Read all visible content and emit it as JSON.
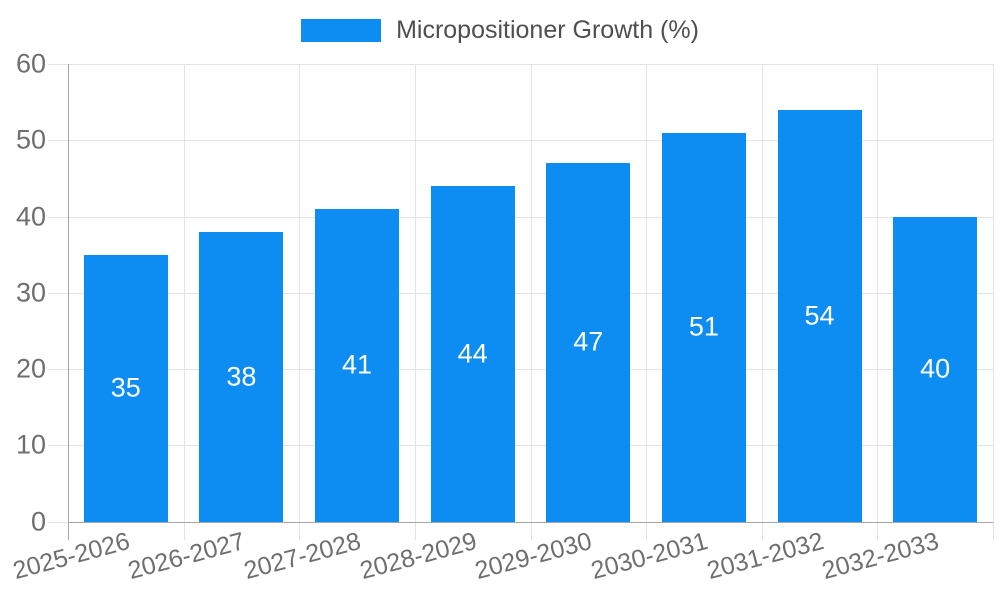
{
  "legend": {
    "label": "Micropositioner Growth (%)"
  },
  "colors": {
    "bar": "#0d8df2",
    "grid": "#e4e4e4",
    "axis": "#a6a6a6",
    "tick_text": "#6f6f6f",
    "legend_text": "#4f4f4f",
    "value_text": "#ffffff",
    "background": "#ffffff"
  },
  "chart_data": {
    "type": "bar",
    "title": "",
    "categories": [
      "2025-2026",
      "2026-2027",
      "2027-2028",
      "2028-2029",
      "2029-2030",
      "2030-2031",
      "2031-2032",
      "2032-2033"
    ],
    "series": [
      {
        "name": "Micropositioner Growth (%)",
        "values": [
          35,
          38,
          41,
          44,
          47,
          51,
          54,
          40
        ]
      }
    ],
    "xlabel": "",
    "ylabel": "",
    "ylim": [
      0,
      60
    ],
    "yticks": [
      0,
      10,
      20,
      30,
      40,
      50,
      60
    ],
    "grid": true,
    "legend_position": "top-center",
    "x_tick_rotation_deg": -15,
    "value_label_position": "inside-center"
  }
}
